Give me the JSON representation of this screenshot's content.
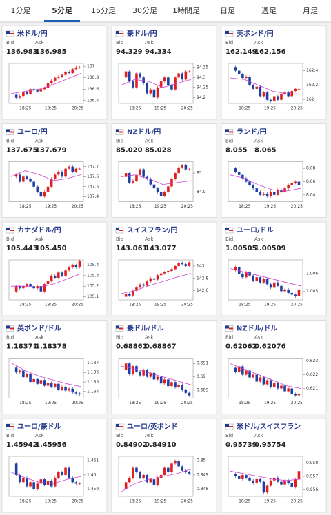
{
  "tabs": [
    "1分足",
    "5分足",
    "15分足",
    "30分足",
    "1時間足",
    "日足",
    "週足",
    "月足"
  ],
  "active_tab": 1,
  "tiles": [
    {
      "name": "米ドル/円",
      "bid_label": "Bid",
      "ask_label": "Ask",
      "bid": "136.983",
      "ask": "136.985",
      "ylim": [
        136.35,
        137.05
      ],
      "yticks": [
        136.4,
        136.6,
        136.8,
        137
      ],
      "xticks": [
        "18:25",
        "19:25",
        "20:25"
      ],
      "closes": [
        136.5,
        136.45,
        136.48,
        136.55,
        136.52,
        136.6,
        136.58,
        136.56,
        136.6,
        136.62,
        136.7,
        136.75,
        136.8,
        136.82,
        136.85,
        136.9,
        136.88,
        136.95,
        136.98,
        136.98
      ],
      "ma": [
        136.52,
        136.56,
        136.6,
        136.68,
        136.78,
        136.88
      ]
    },
    {
      "name": "豪ドル/円",
      "bid_label": "Bid",
      "ask_label": "Ask",
      "bid": "94.329",
      "ask": "94.334",
      "ylim": [
        94.17,
        94.37
      ],
      "yticks": [
        94.2,
        94.25,
        94.3,
        94.35
      ],
      "xticks": [
        "18:25",
        "19:25",
        "20:25"
      ],
      "closes": [
        94.3,
        94.33,
        94.28,
        94.25,
        94.32,
        94.3,
        94.27,
        94.22,
        94.24,
        94.2,
        94.25,
        94.28,
        94.3,
        94.26,
        94.24,
        94.3,
        94.32,
        94.29,
        94.33,
        94.33
      ],
      "ma": [
        94.26,
        94.29,
        94.28,
        94.25,
        94.27,
        94.29
      ]
    },
    {
      "name": "英ポンド/円",
      "bid_label": "Bid",
      "ask_label": "Ask",
      "bid": "162.149",
      "ask": "162.156",
      "ylim": [
        161.95,
        162.5
      ],
      "yticks": [
        162,
        162.2,
        162.4
      ],
      "xticks": [
        "18:25",
        "19:25",
        "20:25"
      ],
      "closes": [
        162.45,
        162.4,
        162.35,
        162.3,
        162.32,
        162.2,
        162.15,
        162.18,
        162.05,
        162.1,
        162.0,
        161.98,
        162.05,
        162.0,
        162.08,
        162.1,
        162.05,
        162.12,
        162.15,
        162.15
      ],
      "ma": [
        162.3,
        162.28,
        162.2,
        162.12,
        162.08,
        162.08
      ]
    },
    {
      "name": "ユーロ/円",
      "bid_label": "Bid",
      "ask_label": "Ask",
      "bid": "137.675",
      "ask": "137.679",
      "ylim": [
        137.35,
        137.75
      ],
      "yticks": [
        137.4,
        137.5,
        137.6,
        137.7
      ],
      "xticks": [
        "18:25",
        "19:25",
        "20:25"
      ],
      "closes": [
        137.6,
        137.62,
        137.55,
        137.6,
        137.58,
        137.55,
        137.5,
        137.45,
        137.4,
        137.45,
        137.5,
        137.58,
        137.62,
        137.65,
        137.6,
        137.68,
        137.7,
        137.65,
        137.68,
        137.68
      ],
      "ma": [
        137.6,
        137.66,
        137.62,
        137.56,
        137.58,
        137.62
      ]
    },
    {
      "name": "NZドル/円",
      "bid_label": "Bid",
      "ask_label": "Ask",
      "bid": "85.020",
      "ask": "85.028",
      "ylim": [
        84.85,
        85.06
      ],
      "yticks": [
        84.9,
        85
      ],
      "xticks": [
        "18:25",
        "19:25",
        "20:25"
      ],
      "closes": [
        84.98,
        85.0,
        84.95,
        84.96,
        84.99,
        85.02,
        84.98,
        84.97,
        84.94,
        84.92,
        84.9,
        84.88,
        84.9,
        84.93,
        84.97,
        85.0,
        85.03,
        85.04,
        85.02,
        85.02
      ],
      "ma": [
        84.98,
        84.99,
        84.97,
        84.94,
        84.95,
        84.96
      ]
    },
    {
      "name": "ランド/円",
      "bid_label": "Bid",
      "ask_label": "Ask",
      "bid": "8.055",
      "ask": "8.065",
      "ylim": [
        8.03,
        8.09
      ],
      "yticks": [
        8.04,
        8.06,
        8.08
      ],
      "xticks": [
        "18:25",
        "19:25",
        "20:25"
      ],
      "closes": [
        8.08,
        8.075,
        8.07,
        8.065,
        8.06,
        8.055,
        8.05,
        8.045,
        8.04,
        8.042,
        8.038,
        8.045,
        8.04,
        8.048,
        8.045,
        8.05,
        8.055,
        8.058,
        8.06,
        8.055
      ],
      "ma": [
        8.07,
        8.065,
        8.055,
        8.048,
        8.046,
        8.05
      ]
    },
    {
      "name": "カナダドル/円",
      "bid_label": "Bid",
      "ask_label": "Ask",
      "bid": "105.443",
      "ask": "105.450",
      "ylim": [
        105.07,
        105.45
      ],
      "yticks": [
        105.1,
        105.2,
        105.3,
        105.4
      ],
      "xticks": [
        "18:25",
        "19:25",
        "20:25"
      ],
      "closes": [
        105.15,
        105.2,
        105.18,
        105.2,
        105.22,
        105.2,
        105.18,
        105.2,
        105.15,
        105.22,
        105.25,
        105.3,
        105.28,
        105.33,
        105.3,
        105.35,
        105.38,
        105.4,
        105.38,
        105.44
      ],
      "ma": [
        105.2,
        105.2,
        105.19,
        105.22,
        105.27,
        105.32
      ]
    },
    {
      "name": "スイスフラン/円",
      "bid_label": "Bid",
      "ask_label": "Ask",
      "bid": "143.061",
      "ask": "143.077",
      "ylim": [
        142.45,
        143.1
      ],
      "yticks": [
        142.6,
        142.8,
        143
      ],
      "xticks": [
        "18:25",
        "19:25",
        "20:25"
      ],
      "closes": [
        142.5,
        142.55,
        142.52,
        142.6,
        142.65,
        142.7,
        142.68,
        142.75,
        142.8,
        142.78,
        142.85,
        142.88,
        142.9,
        142.92,
        142.95,
        143.0,
        143.05,
        143.03,
        143.0,
        143.06
      ],
      "ma": [
        142.55,
        142.6,
        142.68,
        142.75,
        142.82,
        142.88
      ]
    },
    {
      "name": "ユーロ/ドル",
      "bid_label": "Bid",
      "ask_label": "Ask",
      "bid": "1.00505",
      "ask": "1.00509",
      "ylim": [
        1.0045,
        1.0068
      ],
      "yticks": [
        1.005,
        1.006
      ],
      "xticks": [
        "18:25",
        "19:25",
        "20:25"
      ],
      "closes": [
        1.0062,
        1.0064,
        1.006,
        1.0058,
        1.0061,
        1.0059,
        1.0056,
        1.0058,
        1.0055,
        1.0057,
        1.0054,
        1.0052,
        1.0055,
        1.0053,
        1.005,
        1.0051,
        1.0049,
        1.0048,
        1.0047,
        1.0051
      ],
      "ma": [
        1.0063,
        1.0061,
        1.0059,
        1.0057,
        1.0055,
        1.0053
      ]
    },
    {
      "name": "英ポンド/ドル",
      "bid_label": "Bid",
      "ask_label": "Ask",
      "bid": "1.18371",
      "ask": "1.18378",
      "ylim": [
        1.1833,
        1.1875
      ],
      "yticks": [
        1.184,
        1.185,
        1.186,
        1.187
      ],
      "xticks": [
        "18:25",
        "19:25",
        "20:25"
      ],
      "closes": [
        1.1865,
        1.186,
        1.1862,
        1.1855,
        1.1858,
        1.185,
        1.1853,
        1.1848,
        1.1852,
        1.1846,
        1.1849,
        1.1845,
        1.1848,
        1.1842,
        1.1845,
        1.1841,
        1.1843,
        1.1839,
        1.1838,
        1.1837
      ],
      "ma": [
        1.187,
        1.1862,
        1.1856,
        1.1852,
        1.1848,
        1.1845
      ]
    },
    {
      "name": "豪ドル/ドル",
      "bid_label": "Bid",
      "ask_label": "Ask",
      "bid": "0.68861",
      "ask": "0.68867",
      "ylim": [
        0.6884,
        0.6914
      ],
      "yticks": [
        0.689,
        0.69,
        0.691
      ],
      "xticks": [
        "18:25",
        "19:25",
        "20:25"
      ],
      "closes": [
        0.6905,
        0.691,
        0.6902,
        0.6908,
        0.6904,
        0.6901,
        0.6905,
        0.69,
        0.6903,
        0.6898,
        0.69,
        0.6895,
        0.6898,
        0.6893,
        0.6896,
        0.6892,
        0.6894,
        0.689,
        0.6888,
        0.6886
      ],
      "ma": [
        0.6908,
        0.6906,
        0.6903,
        0.69,
        0.6897,
        0.6894
      ]
    },
    {
      "name": "NZドル/ドル",
      "bid_label": "Bid",
      "ask_label": "Ask",
      "bid": "0.62062",
      "ask": "0.62076",
      "ylim": [
        0.6203,
        0.6232
      ],
      "yticks": [
        0.621,
        0.622,
        0.623
      ],
      "xticks": [
        "18:25",
        "19:25",
        "20:25"
      ],
      "closes": [
        0.6225,
        0.6222,
        0.6226,
        0.622,
        0.6223,
        0.6218,
        0.622,
        0.6215,
        0.6218,
        0.6213,
        0.6216,
        0.6211,
        0.6214,
        0.621,
        0.6212,
        0.6208,
        0.621,
        0.6206,
        0.6205,
        0.6206
      ],
      "ma": [
        0.6228,
        0.6224,
        0.622,
        0.6216,
        0.6212,
        0.621
      ]
    },
    {
      "name": "ユーロ/豪ドル",
      "bid_label": "Bid",
      "ask_label": "Ask",
      "bid": "1.45942",
      "ask": "1.45956",
      "ylim": [
        1.4585,
        1.4613
      ],
      "yticks": [
        1.459,
        1.46,
        1.461
      ],
      "xticks": [
        "18:25",
        "19:25",
        "20:25"
      ],
      "closes": [
        1.4608,
        1.46,
        1.4595,
        1.4598,
        1.4592,
        1.4595,
        1.459,
        1.4594,
        1.4597,
        1.4593,
        1.4596,
        1.4592,
        1.4598,
        1.4602,
        1.46,
        1.4605,
        1.4598,
        1.4595,
        1.4594,
        1.4594
      ],
      "ma": [
        1.4602,
        1.4598,
        1.4595,
        1.4594,
        1.4597,
        1.4599
      ]
    },
    {
      "name": "ユーロ/英ポンド",
      "bid_label": "Bid",
      "ask_label": "Ask",
      "bid": "0.84902",
      "ask": "0.84910",
      "ylim": [
        0.8475,
        0.8503
      ],
      "yticks": [
        0.848,
        0.849,
        0.85
      ],
      "xticks": [
        "18:25",
        "19:25",
        "20:25"
      ],
      "closes": [
        0.848,
        0.8485,
        0.8488,
        0.8495,
        0.8492,
        0.8488,
        0.849,
        0.8485,
        0.8487,
        0.8483,
        0.8488,
        0.849,
        0.8495,
        0.8492,
        0.8498,
        0.85,
        0.8496,
        0.8493,
        0.8492,
        0.8491
      ],
      "ma": [
        0.8478,
        0.8484,
        0.8487,
        0.8489,
        0.8491,
        0.8494
      ]
    },
    {
      "name": "米ドル/スイスフラン",
      "bid_label": "Bid",
      "ask_label": "Ask",
      "bid": "0.95739",
      "ask": "0.95754",
      "ylim": [
        0.9555,
        0.9585
      ],
      "yticks": [
        0.956,
        0.957,
        0.958
      ],
      "xticks": [
        "18:25",
        "19:25",
        "20:25"
      ],
      "closes": [
        0.9572,
        0.957,
        0.9568,
        0.9571,
        0.9569,
        0.9567,
        0.9565,
        0.9568,
        0.9566,
        0.9558,
        0.9563,
        0.9567,
        0.9569,
        0.9566,
        0.9564,
        0.9567,
        0.9565,
        0.9562,
        0.9568,
        0.9574
      ],
      "ma": [
        0.9574,
        0.9572,
        0.957,
        0.9568,
        0.9567,
        0.9568
      ]
    }
  ]
}
